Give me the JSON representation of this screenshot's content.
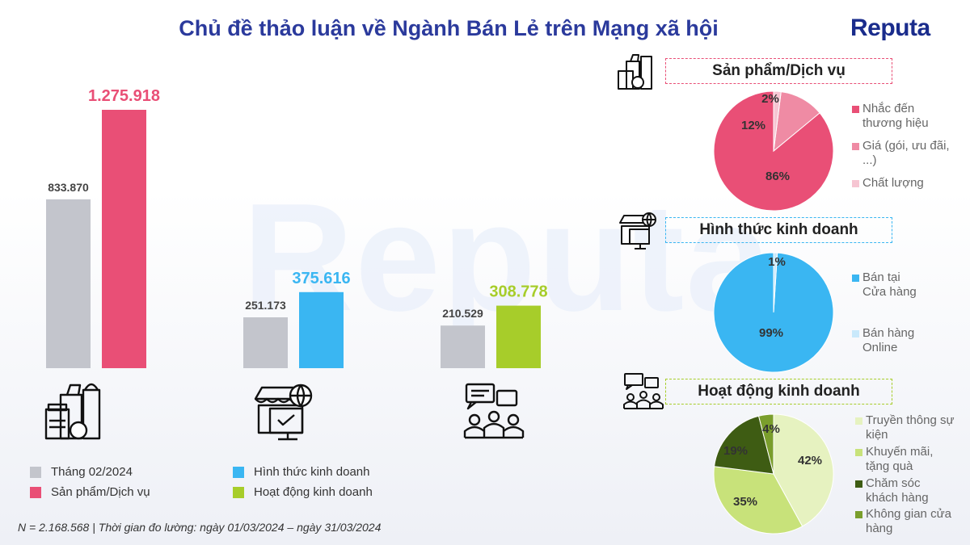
{
  "title": "Chủ đề thảo luận về Ngành Bán Lẻ trên Mạng xã hội",
  "logo": {
    "main": "Reputa",
    "dot_char": "."
  },
  "watermark": "Reputa",
  "footnote": "N = 2.168.568 | Thời gian đo lường: ngày 01/03/2024 – ngày 31/03/2024",
  "colors": {
    "grey": "#c3c5cc",
    "pink": "#e94f76",
    "blue": "#3ab6f2",
    "green": "#a7cd2a"
  },
  "legend": [
    {
      "label": "Tháng 02/2024",
      "color": "#c3c5cc"
    },
    {
      "label": "Sản phẩm/Dịch vụ",
      "color": "#e94f76"
    },
    {
      "label": "Hình thức kinh doanh",
      "color": "#3ab6f2"
    },
    {
      "label": "Hoạt động kinh doanh",
      "color": "#a7cd2a"
    }
  ],
  "icons": [
    "grocery-bag-icon",
    "online-store-icon",
    "meeting-chat-icon"
  ],
  "chart_data": [
    {
      "type": "bar",
      "title": "",
      "categories": [
        "Sản phẩm/Dịch vụ",
        "Hình thức kinh doanh",
        "Hoạt động kinh doanh"
      ],
      "series": [
        {
          "name": "Tháng 02/2024",
          "values": [
            833870,
            251173,
            210529
          ],
          "labels": [
            "833.870",
            "251.173",
            "210.529"
          ]
        },
        {
          "name": "",
          "values": [
            1275918,
            375616,
            308778
          ],
          "labels": [
            "1.275.918",
            "375.616",
            "308.778"
          ],
          "colors": [
            "#e94f76",
            "#3ab6f2",
            "#a7cd2a"
          ]
        }
      ],
      "ylim": [
        0,
        1400000
      ]
    },
    {
      "type": "pie",
      "title": "Sản phẩm/Dịch vụ",
      "slices": [
        {
          "label": "Nhắc đến thương hiệu",
          "value": 86,
          "text": "86%",
          "color": "#e94f76"
        },
        {
          "label": "Giá (gói, ưu đãi, ...)",
          "value": 12,
          "text": "12%",
          "color": "#ef8ba4"
        },
        {
          "label": "Chất lượng",
          "value": 2,
          "text": "2%",
          "color": "#f6c5d2"
        }
      ]
    },
    {
      "type": "pie",
      "title": "Hình thức kinh doanh",
      "slices": [
        {
          "label": "Bán tại Cửa hàng",
          "value": 99,
          "text": "99%",
          "color": "#3ab6f2"
        },
        {
          "label": "Bán hàng Online",
          "value": 1,
          "text": "1%",
          "color": "#c9e9fb"
        }
      ]
    },
    {
      "type": "pie",
      "title": "Hoạt động kinh doanh",
      "slices": [
        {
          "label": "Truyền thông sự kiện",
          "value": 42,
          "text": "42%",
          "color": "#e6f2c0"
        },
        {
          "label": "Khuyến mãi, tặng quà",
          "value": 35,
          "text": "35%",
          "color": "#c8e27a"
        },
        {
          "label": "Chăm sóc khách hàng",
          "value": 19,
          "text": "19%",
          "color": "#3e5c13"
        },
        {
          "label": "Không gian cửa hàng",
          "value": 4,
          "text": "4%",
          "color": "#7a9e2c"
        }
      ]
    }
  ]
}
